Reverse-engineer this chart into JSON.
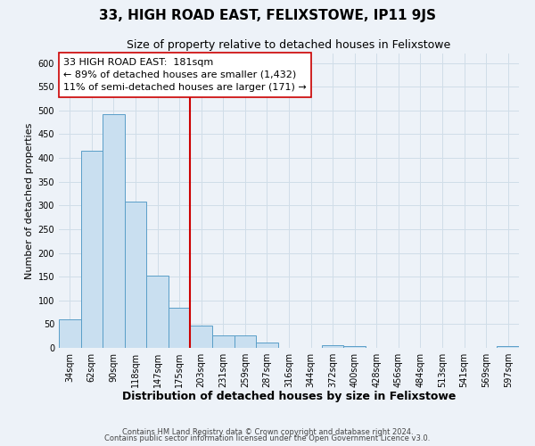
{
  "title": "33, HIGH ROAD EAST, FELIXSTOWE, IP11 9JS",
  "subtitle": "Size of property relative to detached houses in Felixstowe",
  "bar_labels": [
    "34sqm",
    "62sqm",
    "90sqm",
    "118sqm",
    "147sqm",
    "175sqm",
    "203sqm",
    "231sqm",
    "259sqm",
    "287sqm",
    "316sqm",
    "344sqm",
    "372sqm",
    "400sqm",
    "428sqm",
    "456sqm",
    "484sqm",
    "513sqm",
    "541sqm",
    "569sqm",
    "597sqm"
  ],
  "bar_values": [
    60,
    415,
    493,
    308,
    152,
    84,
    47,
    27,
    27,
    12,
    0,
    0,
    5,
    3,
    0,
    0,
    0,
    0,
    0,
    0,
    4
  ],
  "bar_color": "#c9dff0",
  "bar_edge_color": "#5a9ec8",
  "grid_color": "#d0dde8",
  "background_color": "#edf2f8",
  "vline_color": "#cc0000",
  "annotation_line1": "33 HIGH ROAD EAST:  181sqm",
  "annotation_line2": "← 89% of detached houses are smaller (1,432)",
  "annotation_line3": "11% of semi-detached houses are larger (171) →",
  "annotation_box_color": "#ffffff",
  "annotation_box_edge": "#cc0000",
  "xlabel": "Distribution of detached houses by size in Felixstowe",
  "ylabel": "Number of detached properties",
  "ylim": [
    0,
    620
  ],
  "yticks": [
    0,
    50,
    100,
    150,
    200,
    250,
    300,
    350,
    400,
    450,
    500,
    550,
    600
  ],
  "footer_line1": "Contains HM Land Registry data © Crown copyright and database right 2024.",
  "footer_line2": "Contains public sector information licensed under the Open Government Licence v3.0.",
  "title_fontsize": 11,
  "subtitle_fontsize": 9,
  "xlabel_fontsize": 9,
  "ylabel_fontsize": 8,
  "tick_fontsize": 7,
  "annotation_fontsize": 8,
  "footer_fontsize": 6
}
